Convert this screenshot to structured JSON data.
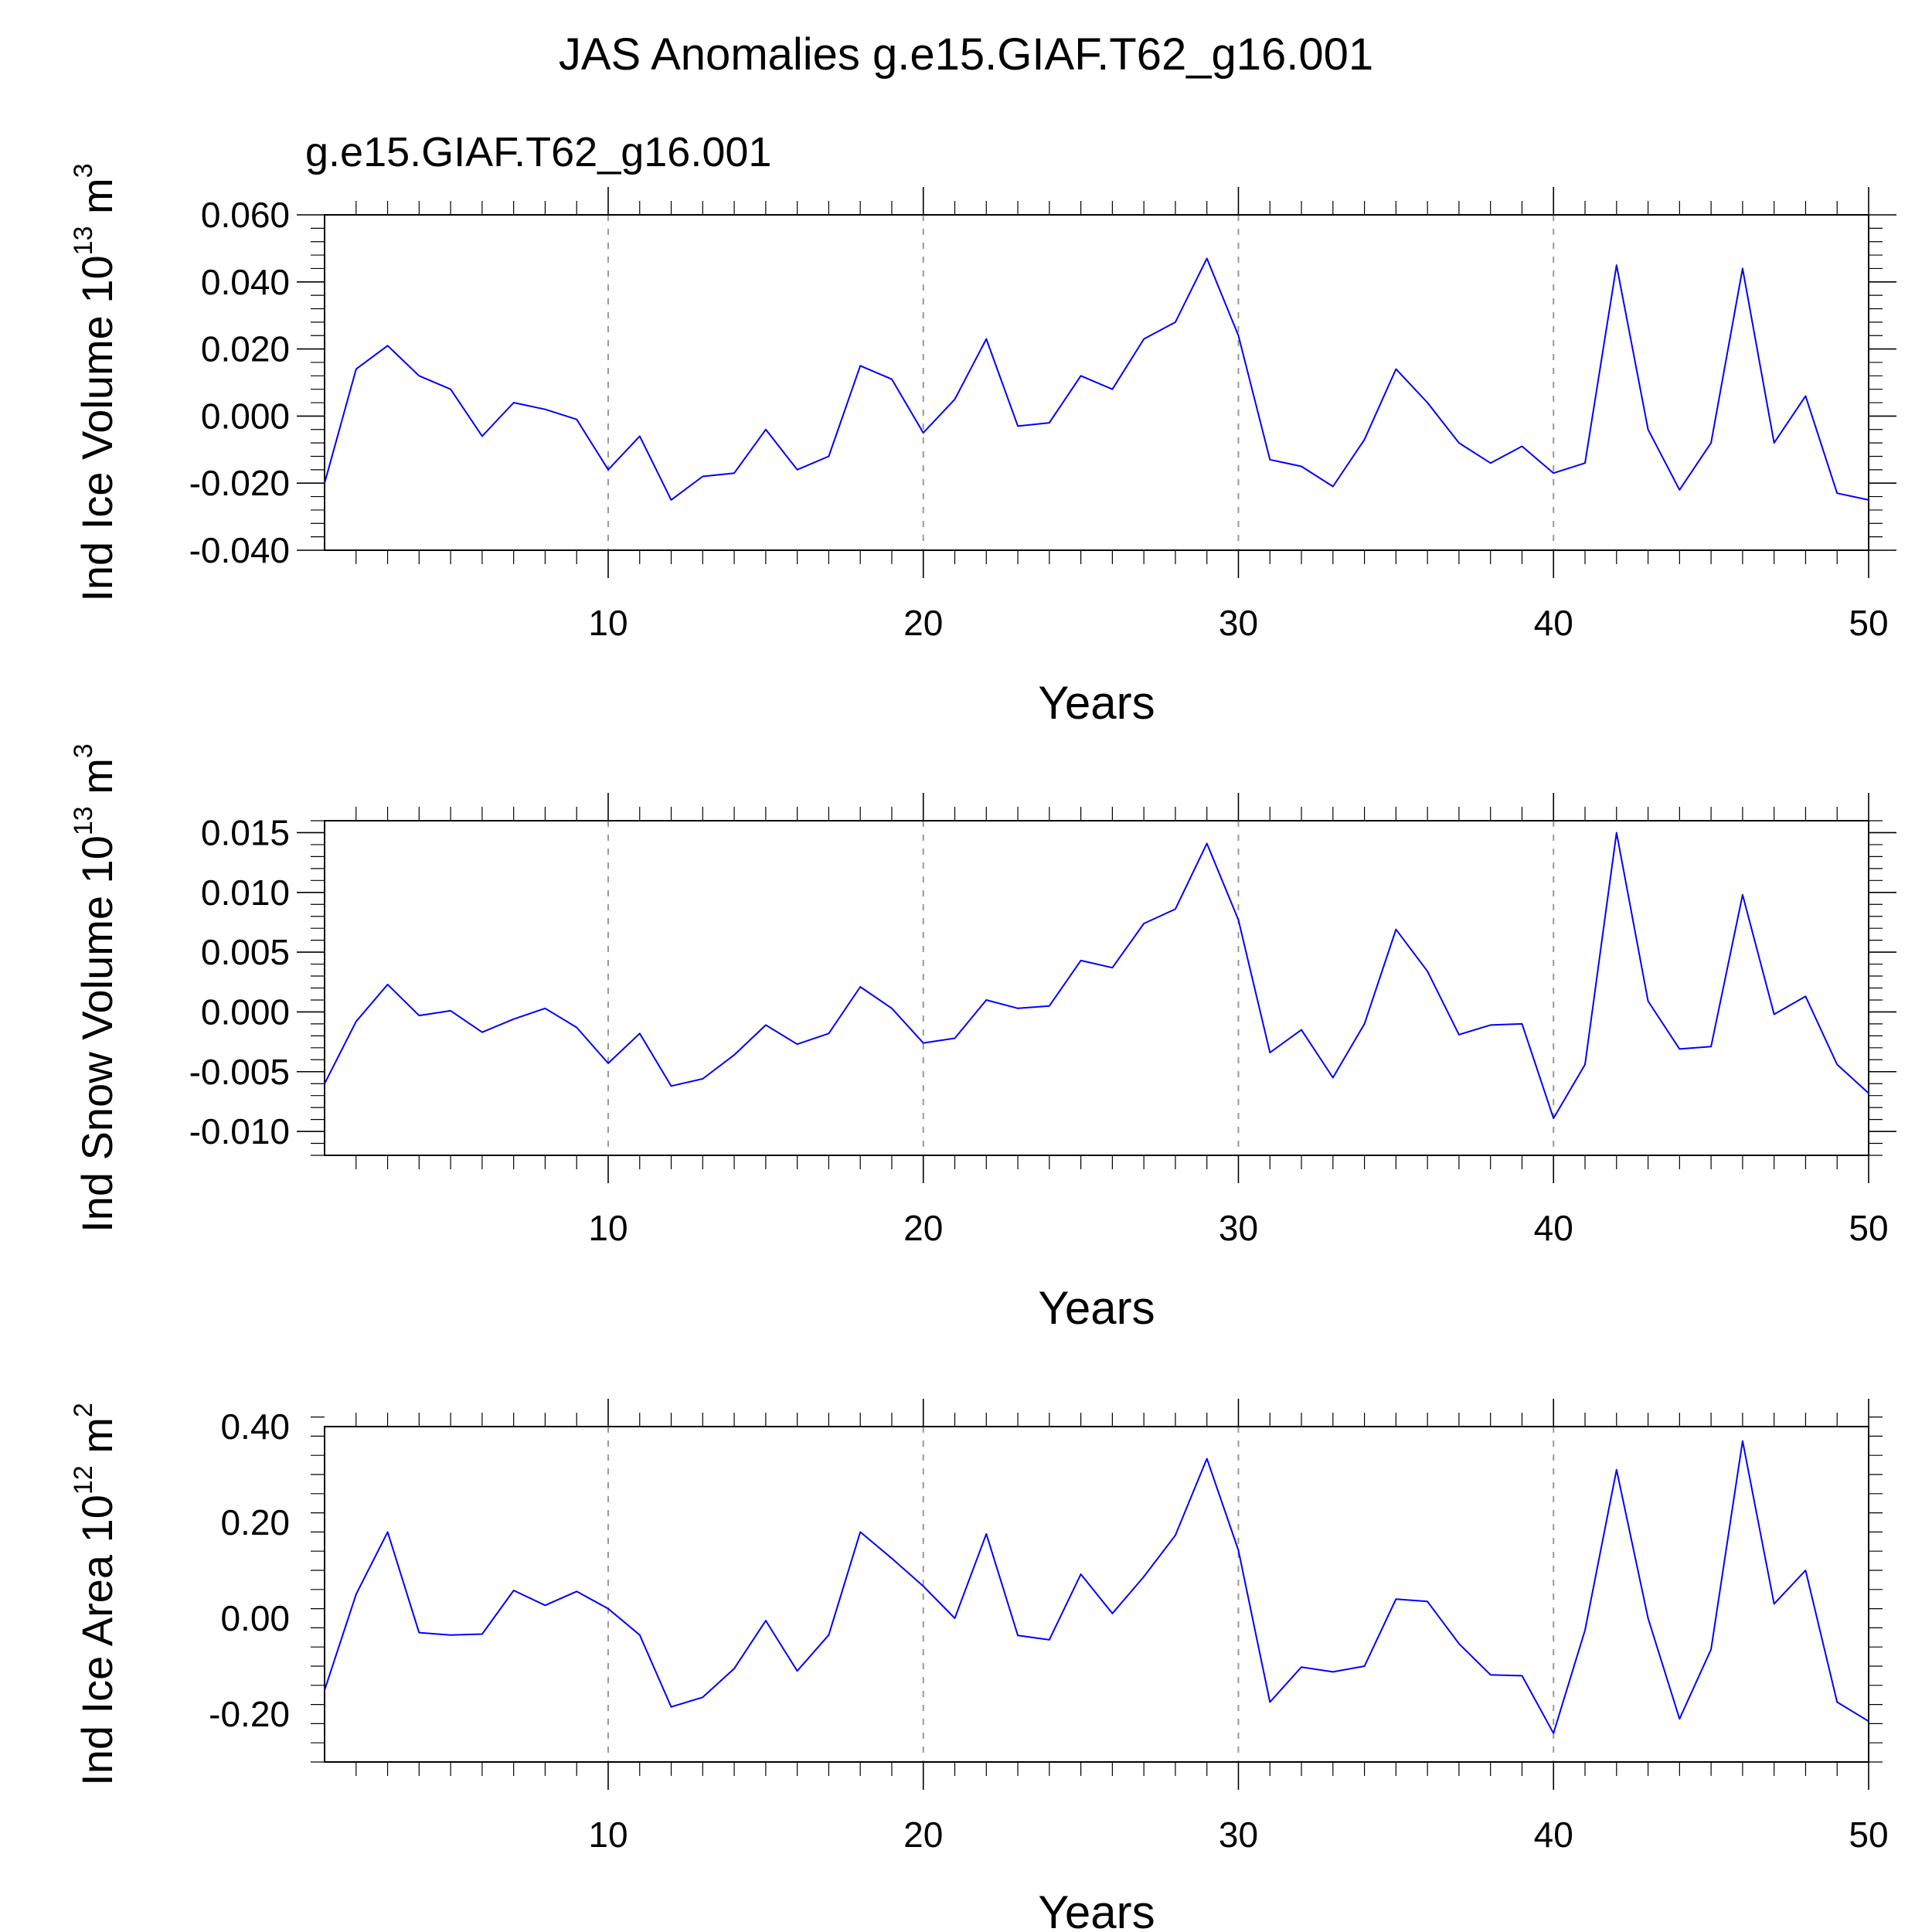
{
  "colors": {
    "series": "#0000FF",
    "subtitle": "#0000FF",
    "grid": "#999999"
  },
  "chart_data": [
    {
      "type": "line",
      "title": "JAS Anomalies g.e15.GIAF.T62_g16.001",
      "subtitle": "g.e15.GIAF.T62_g16.001",
      "ylabel_text": "Ind Ice Volume 10",
      "ylabel_exp": "13",
      "ylabel_unit": " m",
      "ylabel_unit_exp": "3",
      "xlabel": "Years",
      "xlim": [
        1,
        50
      ],
      "ylim": [
        -0.04,
        0.06
      ],
      "xticks": [
        10,
        20,
        30,
        40,
        50
      ],
      "xtick_labels": [
        "10",
        "20",
        "30",
        "40",
        "50"
      ],
      "yticks": [
        -0.04,
        -0.02,
        0.0,
        0.02,
        0.04,
        0.06
      ],
      "ytick_labels": [
        "-0.040",
        "-0.020",
        "0.000",
        "0.020",
        "0.040",
        "0.060"
      ],
      "y_minor_step": 0.004,
      "grid_x": [
        10,
        20,
        30,
        40
      ],
      "series": [
        {
          "name": "g.e15.GIAF.T62_g16.001",
          "x": [
            1,
            2,
            3,
            4,
            5,
            6,
            7,
            8,
            9,
            10,
            11,
            12,
            13,
            14,
            15,
            16,
            17,
            18,
            19,
            20,
            21,
            22,
            23,
            24,
            25,
            26,
            27,
            28,
            29,
            30,
            31,
            32,
            33,
            34,
            35,
            36,
            37,
            38,
            39,
            40,
            41,
            42,
            43,
            44,
            45,
            46,
            47,
            48,
            49,
            50
          ],
          "values": [
            -0.02,
            0.014,
            0.021,
            0.012,
            0.008,
            -0.006,
            0.004,
            0.002,
            -0.001,
            -0.016,
            -0.006,
            -0.025,
            -0.018,
            -0.017,
            -0.004,
            -0.016,
            -0.012,
            0.015,
            0.011,
            -0.005,
            0.005,
            0.023,
            -0.003,
            -0.002,
            0.012,
            0.008,
            0.023,
            0.028,
            0.047,
            0.024,
            -0.013,
            -0.015,
            -0.021,
            -0.007,
            0.014,
            0.004,
            -0.008,
            -0.014,
            -0.009,
            -0.017,
            -0.014,
            0.045,
            -0.004,
            -0.022,
            -0.008,
            0.044,
            -0.008,
            0.006,
            -0.023,
            -0.025
          ]
        }
      ]
    },
    {
      "type": "line",
      "ylabel_text": "Ind Snow Volume 10",
      "ylabel_exp": "13",
      "ylabel_unit": " m",
      "ylabel_unit_exp": "3",
      "xlabel": "Years",
      "xlim": [
        1,
        50
      ],
      "ylim": [
        -0.012,
        0.016
      ],
      "xticks": [
        10,
        20,
        30,
        40,
        50
      ],
      "xtick_labels": [
        "10",
        "20",
        "30",
        "40",
        "50"
      ],
      "yticks": [
        -0.01,
        -0.005,
        0.0,
        0.005,
        0.01,
        0.015
      ],
      "ytick_labels": [
        "-0.010",
        "-0.005",
        "0.000",
        "0.005",
        "0.010",
        "0.015"
      ],
      "y_minor_step": 0.001,
      "grid_x": [
        10,
        20,
        30,
        40
      ],
      "series": [
        {
          "name": "g.e15.GIAF.T62_g16.001",
          "x": [
            1,
            2,
            3,
            4,
            5,
            6,
            7,
            8,
            9,
            10,
            11,
            12,
            13,
            14,
            15,
            16,
            17,
            18,
            19,
            20,
            21,
            22,
            23,
            24,
            25,
            26,
            27,
            28,
            29,
            30,
            31,
            32,
            33,
            34,
            35,
            36,
            37,
            38,
            39,
            40,
            41,
            42,
            43,
            44,
            45,
            46,
            47,
            48,
            49,
            50
          ],
          "values": [
            -0.006,
            -0.0008,
            0.0023,
            -0.0003,
            0.0001,
            -0.0017,
            -0.0006,
            0.0003,
            -0.0013,
            -0.0043,
            -0.0018,
            -0.0062,
            -0.0056,
            -0.0036,
            -0.0011,
            -0.0027,
            -0.0018,
            0.0021,
            0.0003,
            -0.0026,
            -0.0022,
            0.001,
            0.0003,
            0.0005,
            0.0043,
            0.0037,
            0.0074,
            0.0086,
            0.0141,
            0.0077,
            -0.0034,
            -0.0015,
            -0.0055,
            -0.001,
            0.0069,
            0.0034,
            -0.0019,
            -0.0011,
            -0.001,
            -0.0089,
            -0.0044,
            0.015,
            0.0009,
            -0.0031,
            -0.0029,
            0.0098,
            -0.0002,
            0.0013,
            -0.0044,
            -0.0068
          ]
        }
      ]
    },
    {
      "type": "line",
      "ylabel_text": "Ind Ice Area 10",
      "ylabel_exp": "12",
      "ylabel_unit": " m",
      "ylabel_unit_exp": "2",
      "xlabel": "Years",
      "xlim": [
        1,
        50
      ],
      "ylim": [
        -0.3,
        0.4
      ],
      "xticks": [
        10,
        20,
        30,
        40,
        50
      ],
      "xtick_labels": [
        "10",
        "20",
        "30",
        "40",
        "50"
      ],
      "yticks": [
        -0.2,
        0.0,
        0.2,
        0.4
      ],
      "ytick_labels": [
        "-0.20",
        "0.00",
        "0.20",
        "0.40"
      ],
      "y_minor_step": 0.04,
      "grid_x": [
        10,
        20,
        30,
        40
      ],
      "series": [
        {
          "name": "g.e15.GIAF.T62_g16.001",
          "x": [
            1,
            2,
            3,
            4,
            5,
            6,
            7,
            8,
            9,
            10,
            11,
            12,
            13,
            14,
            15,
            16,
            17,
            18,
            19,
            20,
            21,
            22,
            23,
            24,
            25,
            26,
            27,
            28,
            29,
            30,
            31,
            32,
            33,
            34,
            35,
            36,
            37,
            38,
            39,
            40,
            41,
            42,
            43,
            44,
            45,
            46,
            47,
            48,
            49,
            50
          ],
          "values": [
            -0.15,
            0.05,
            0.18,
            -0.03,
            -0.035,
            -0.033,
            0.058,
            0.027,
            0.056,
            0.02,
            -0.035,
            -0.185,
            -0.165,
            -0.105,
            -0.005,
            -0.11,
            -0.035,
            0.18,
            0.125,
            0.067,
            0.0,
            0.176,
            -0.036,
            -0.045,
            0.092,
            0.01,
            0.087,
            0.173,
            0.333,
            0.142,
            -0.175,
            -0.102,
            -0.112,
            -0.1,
            0.04,
            0.035,
            -0.053,
            -0.118,
            -0.12,
            -0.24,
            -0.025,
            0.31,
            0.0,
            -0.21,
            -0.065,
            0.37,
            0.03,
            0.1,
            -0.175,
            -0.215
          ]
        }
      ]
    }
  ]
}
